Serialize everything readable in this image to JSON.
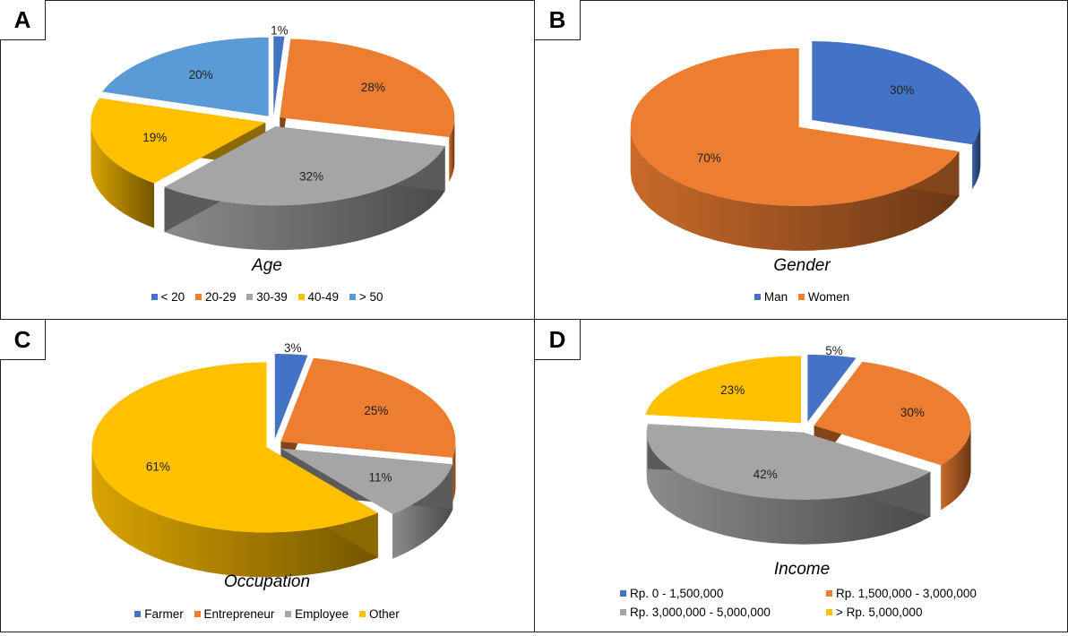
{
  "chart_data": [
    {
      "type": "pie",
      "panel": "A",
      "title": "Age",
      "categories": [
        "< 20",
        "20-29",
        "30-39",
        "40-49",
        "> 50"
      ],
      "values": [
        1,
        28,
        32,
        19,
        20
      ],
      "labels": [
        "1%",
        "28%",
        "32%",
        "19%",
        "20%"
      ],
      "colors": [
        "#4472C4",
        "#ED7D31",
        "#A5A5A5",
        "#FFC000",
        "#5B9BD5"
      ],
      "exploded": true,
      "legend_position": "bottom"
    },
    {
      "type": "pie",
      "panel": "B",
      "title": "Gender",
      "categories": [
        "Man",
        "Women"
      ],
      "values": [
        30,
        70
      ],
      "labels": [
        "30%",
        "70%"
      ],
      "colors": [
        "#4472C4",
        "#ED7D31"
      ],
      "exploded": true,
      "legend_position": "bottom"
    },
    {
      "type": "pie",
      "panel": "C",
      "title": "Occupation",
      "categories": [
        "Farmer",
        "Entrepreneur",
        "Employee",
        "Other"
      ],
      "values": [
        3,
        25,
        11,
        61
      ],
      "labels": [
        "3%",
        "25%",
        "11%",
        "61%"
      ],
      "colors": [
        "#4472C4",
        "#ED7D31",
        "#A5A5A5",
        "#FFC000"
      ],
      "exploded": true,
      "legend_position": "bottom"
    },
    {
      "type": "pie",
      "panel": "D",
      "title": "Income",
      "categories": [
        "Rp. 0 - 1,500,000",
        "Rp. 1,500,000 - 3,000,000",
        "Rp. 3,000,000 - 5,000,000",
        "> Rp. 5,000,000"
      ],
      "values": [
        5,
        30,
        42,
        23
      ],
      "labels": [
        "5%",
        "30%",
        "42%",
        "23%"
      ],
      "colors": [
        "#4472C4",
        "#ED7D31",
        "#A5A5A5",
        "#FFC000"
      ],
      "exploded": true,
      "legend_position": "bottom"
    }
  ]
}
